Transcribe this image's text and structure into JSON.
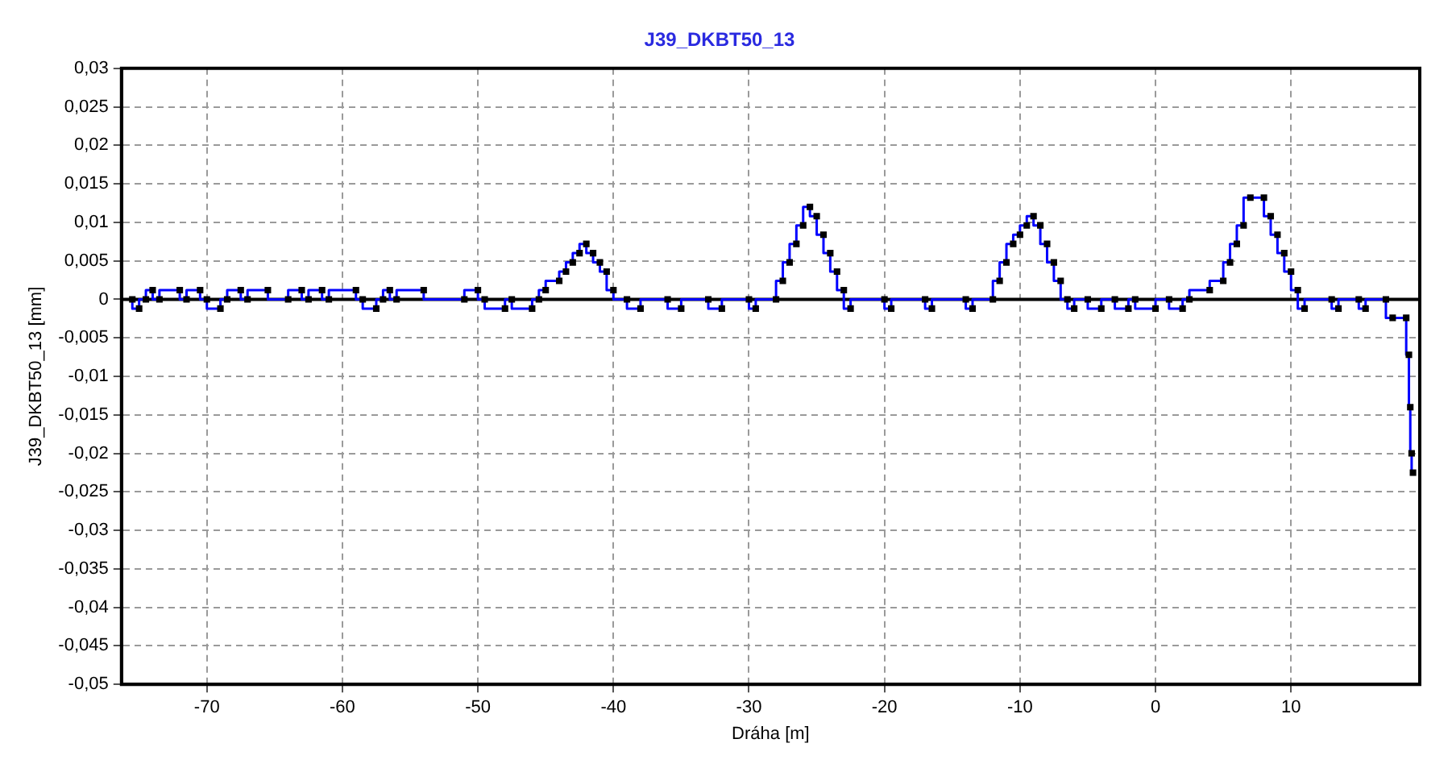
{
  "chart_data": {
    "type": "step",
    "title": "J39_DKBT50_13",
    "xlabel": "Dráha [m]",
    "ylabel": "J39_DKBT50_13 [mm]",
    "xlim": [
      -76.3,
      19.5
    ],
    "xticks": [
      -70,
      -60,
      -50,
      -40,
      -30,
      -20,
      -10,
      0,
      10
    ],
    "ylim": [
      -0.05,
      0.03
    ],
    "yticks": [
      {
        "value": 0.03,
        "label": "0,03"
      },
      {
        "value": 0.025,
        "label": "0,025"
      },
      {
        "value": 0.02,
        "label": "0,02"
      },
      {
        "value": 0.015,
        "label": "0,015"
      },
      {
        "value": 0.01,
        "label": "0,01"
      },
      {
        "value": 0.005,
        "label": "0,005"
      },
      0,
      {
        "value": -0.005,
        "label": "-0,005"
      },
      {
        "value": -0.01,
        "label": "-0,01"
      },
      {
        "value": -0.015,
        "label": "-0,015"
      },
      {
        "value": -0.02,
        "label": "-0,02"
      },
      {
        "value": -0.025,
        "label": "-0,025"
      },
      {
        "value": -0.03,
        "label": "-0,03"
      },
      {
        "value": -0.035,
        "label": "-0,035"
      },
      {
        "value": -0.04,
        "label": "-0,04"
      },
      {
        "value": -0.045,
        "label": "-0,045"
      },
      {
        "value": -0.05,
        "label": "-0,05"
      }
    ],
    "grid": true,
    "legend": false,
    "marker": "square",
    "line_style": "solid",
    "series": [
      {
        "color": "#0000ff",
        "x": [
          -75.5,
          -75,
          -74.5,
          -74,
          -73.5,
          -72,
          -71.5,
          -70.5,
          -70,
          -69,
          -68.5,
          -67.5,
          -67,
          -65.5,
          -64,
          -63,
          -62.5,
          -61.5,
          -61,
          -59,
          -58.5,
          -57.5,
          -57,
          -56.5,
          -56,
          -54,
          -51,
          -50,
          -49.5,
          -48,
          -47.5,
          -46,
          -45.5,
          -45,
          -44,
          -43.5,
          -43,
          -42.5,
          -42,
          -41.5,
          -41,
          -40.5,
          -40,
          -39,
          -38,
          -36,
          -35,
          -33,
          -32,
          -30,
          -29.5,
          -28,
          -27.5,
          -27,
          -26.5,
          -26,
          -25.5,
          -25,
          -24.5,
          -24,
          -23.5,
          -23,
          -22.5,
          -20,
          -19.5,
          -17,
          -16.5,
          -14,
          -13.5,
          -12,
          -11.5,
          -11,
          -10.5,
          -10,
          -9.5,
          -9,
          -8.5,
          -8,
          -7.5,
          -7,
          -6.5,
          -6,
          -5,
          -4,
          -3,
          -2,
          -1.5,
          0,
          1,
          2,
          2.5,
          4,
          5,
          5.5,
          6,
          6.5,
          7,
          8,
          8.5,
          9,
          9.5,
          10,
          10.5,
          11,
          13,
          13.5,
          15,
          15.5,
          17,
          17.5,
          18.5,
          18.7,
          18.8,
          18.9,
          19
        ],
        "values": [
          0,
          -0.0012,
          0,
          0.0012,
          0,
          0.0012,
          0,
          0.0012,
          0,
          -0.0012,
          0,
          0.0012,
          0,
          0.0012,
          0,
          0.0012,
          0,
          0.0012,
          0,
          0.0012,
          0,
          -0.0012,
          0,
          0.0012,
          0,
          0.0012,
          0,
          0.0012,
          0,
          -0.0012,
          0,
          -0.0012,
          0,
          0.0012,
          0.0024,
          0.0036,
          0.0048,
          0.006,
          0.0072,
          0.006,
          0.0048,
          0.0036,
          0.0012,
          0,
          -0.0012,
          0,
          -0.0012,
          0,
          -0.0012,
          0,
          -0.0012,
          0,
          0.0024,
          0.0048,
          0.0072,
          0.0096,
          0.012,
          0.0108,
          0.0084,
          0.006,
          0.0036,
          0.0012,
          -0.0012,
          0,
          -0.0012,
          0,
          -0.0012,
          0,
          -0.0012,
          0,
          0.0024,
          0.0048,
          0.0072,
          0.0084,
          0.0096,
          0.0108,
          0.0096,
          0.0072,
          0.0048,
          0.0024,
          0,
          -0.0012,
          0,
          -0.0012,
          0,
          -0.0012,
          0,
          -0.0012,
          0,
          -0.0012,
          0,
          0.0012,
          0.0024,
          0.0048,
          0.0072,
          0.0096,
          0.0132,
          0.0132,
          0.0108,
          0.0084,
          0.006,
          0.0036,
          0.0012,
          -0.0012,
          0,
          -0.0012,
          0,
          -0.0012,
          0,
          -0.0024,
          -0.0024,
          -0.0072,
          -0.014,
          -0.02,
          -0.0225
        ]
      }
    ]
  }
}
